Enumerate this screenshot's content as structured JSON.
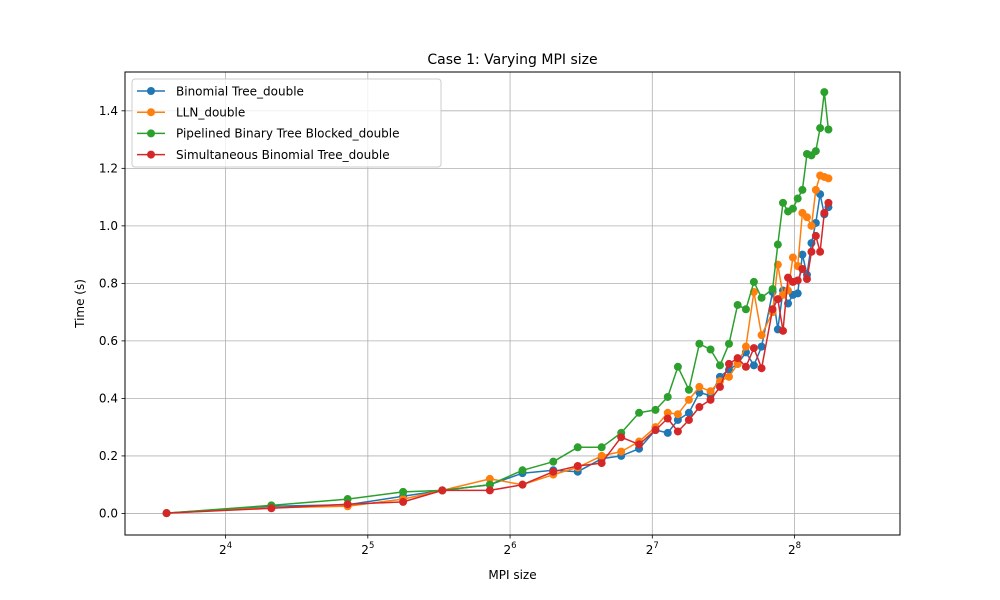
{
  "chart_data": {
    "type": "line",
    "title": "Case 1: Varying MPI size",
    "xlabel": "MPI size",
    "ylabel": "Time (s)",
    "x_scale": "log2",
    "xlim": [
      9.8,
      428
    ],
    "ylim": [
      -0.075,
      1.535
    ],
    "x_ticks": [
      16,
      32,
      64,
      128,
      256
    ],
    "x_tick_labels": [
      {
        "base": "2",
        "exp": "4"
      },
      {
        "base": "2",
        "exp": "5"
      },
      {
        "base": "2",
        "exp": "6"
      },
      {
        "base": "2",
        "exp": "7"
      },
      {
        "base": "2",
        "exp": "8"
      }
    ],
    "y_ticks": [
      0.0,
      0.2,
      0.4,
      0.6,
      0.8,
      1.0,
      1.2,
      1.4
    ],
    "y_tick_labels": [
      "0.0",
      "0.2",
      "0.4",
      "0.6",
      "0.8",
      "1.0",
      "1.2",
      "1.4"
    ],
    "grid": true,
    "legend_position": "top-left",
    "series": [
      {
        "name": "Binomial Tree_double",
        "color": "#1f77b4",
        "points": [
          [
            12,
            0.001
          ],
          [
            20,
            0.025
          ],
          [
            29,
            0.03
          ],
          [
            38,
            0.06
          ],
          [
            46,
            0.08
          ],
          [
            58,
            0.1
          ],
          [
            68,
            0.14
          ],
          [
            79,
            0.15
          ],
          [
            89,
            0.145
          ],
          [
            100,
            0.19
          ],
          [
            110,
            0.2
          ],
          [
            120,
            0.225
          ],
          [
            130,
            0.29
          ],
          [
            138,
            0.28
          ],
          [
            145,
            0.325
          ],
          [
            153,
            0.35
          ],
          [
            161,
            0.42
          ],
          [
            170,
            0.41
          ],
          [
            178,
            0.475
          ],
          [
            186,
            0.5
          ],
          [
            194,
            0.52
          ],
          [
            202,
            0.56
          ],
          [
            210,
            0.515
          ],
          [
            218,
            0.58
          ],
          [
            230,
            0.77
          ],
          [
            236,
            0.64
          ],
          [
            242,
            0.775
          ],
          [
            248,
            0.73
          ],
          [
            254,
            0.76
          ],
          [
            260,
            0.765
          ],
          [
            266,
            0.9
          ],
          [
            272,
            0.83
          ],
          [
            278,
            0.94
          ],
          [
            284,
            1.01
          ],
          [
            290,
            1.11
          ],
          [
            296,
            1.04
          ],
          [
            302,
            1.065
          ]
        ]
      },
      {
        "name": "LLN_double",
        "color": "#ff7f0e",
        "points": [
          [
            12,
            0.001
          ],
          [
            20,
            0.02
          ],
          [
            29,
            0.025
          ],
          [
            38,
            0.05
          ],
          [
            46,
            0.08
          ],
          [
            58,
            0.12
          ],
          [
            68,
            0.1
          ],
          [
            79,
            0.135
          ],
          [
            89,
            0.16
          ],
          [
            100,
            0.2
          ],
          [
            110,
            0.215
          ],
          [
            120,
            0.25
          ],
          [
            130,
            0.3
          ],
          [
            138,
            0.35
          ],
          [
            145,
            0.345
          ],
          [
            153,
            0.395
          ],
          [
            161,
            0.44
          ],
          [
            170,
            0.425
          ],
          [
            178,
            0.46
          ],
          [
            186,
            0.475
          ],
          [
            194,
            0.52
          ],
          [
            202,
            0.58
          ],
          [
            210,
            0.77
          ],
          [
            218,
            0.62
          ],
          [
            230,
            0.7
          ],
          [
            236,
            0.865
          ],
          [
            242,
            0.76
          ],
          [
            248,
            0.775
          ],
          [
            254,
            0.89
          ],
          [
            260,
            0.86
          ],
          [
            266,
            1.045
          ],
          [
            272,
            1.03
          ],
          [
            278,
            1.0
          ],
          [
            284,
            1.125
          ],
          [
            290,
            1.175
          ],
          [
            296,
            1.17
          ],
          [
            302,
            1.165
          ]
        ]
      },
      {
        "name": "Pipelined Binary Tree Blocked_double",
        "color": "#2ca02c",
        "points": [
          [
            12,
            0.001
          ],
          [
            20,
            0.028
          ],
          [
            29,
            0.05
          ],
          [
            38,
            0.075
          ],
          [
            46,
            0.08
          ],
          [
            58,
            0.1
          ],
          [
            68,
            0.15
          ],
          [
            79,
            0.18
          ],
          [
            89,
            0.23
          ],
          [
            100,
            0.23
          ],
          [
            110,
            0.28
          ],
          [
            120,
            0.35
          ],
          [
            130,
            0.36
          ],
          [
            138,
            0.405
          ],
          [
            145,
            0.51
          ],
          [
            153,
            0.43
          ],
          [
            161,
            0.59
          ],
          [
            170,
            0.57
          ],
          [
            178,
            0.515
          ],
          [
            186,
            0.59
          ],
          [
            194,
            0.725
          ],
          [
            202,
            0.71
          ],
          [
            210,
            0.805
          ],
          [
            218,
            0.75
          ],
          [
            230,
            0.78
          ],
          [
            236,
            0.935
          ],
          [
            242,
            1.08
          ],
          [
            248,
            1.05
          ],
          [
            254,
            1.06
          ],
          [
            260,
            1.095
          ],
          [
            266,
            1.125
          ],
          [
            272,
            1.25
          ],
          [
            278,
            1.245
          ],
          [
            284,
            1.26
          ],
          [
            290,
            1.34
          ],
          [
            296,
            1.465
          ],
          [
            302,
            1.335
          ]
        ]
      },
      {
        "name": "Simultaneous Binomial Tree_double",
        "color": "#d62728",
        "points": [
          [
            12,
            0.001
          ],
          [
            20,
            0.018
          ],
          [
            29,
            0.032
          ],
          [
            38,
            0.04
          ],
          [
            46,
            0.08
          ],
          [
            58,
            0.08
          ],
          [
            68,
            0.1
          ],
          [
            79,
            0.145
          ],
          [
            89,
            0.165
          ],
          [
            100,
            0.175
          ],
          [
            110,
            0.265
          ],
          [
            120,
            0.24
          ],
          [
            130,
            0.29
          ],
          [
            138,
            0.33
          ],
          [
            145,
            0.285
          ],
          [
            153,
            0.325
          ],
          [
            161,
            0.37
          ],
          [
            170,
            0.395
          ],
          [
            178,
            0.44
          ],
          [
            186,
            0.52
          ],
          [
            194,
            0.54
          ],
          [
            202,
            0.51
          ],
          [
            210,
            0.575
          ],
          [
            218,
            0.505
          ],
          [
            230,
            0.71
          ],
          [
            236,
            0.745
          ],
          [
            242,
            0.635
          ],
          [
            248,
            0.82
          ],
          [
            254,
            0.805
          ],
          [
            260,
            0.81
          ],
          [
            266,
            0.85
          ],
          [
            272,
            0.815
          ],
          [
            278,
            0.91
          ],
          [
            284,
            0.965
          ],
          [
            290,
            0.91
          ],
          [
            296,
            1.045
          ],
          [
            302,
            1.08
          ]
        ]
      }
    ]
  }
}
